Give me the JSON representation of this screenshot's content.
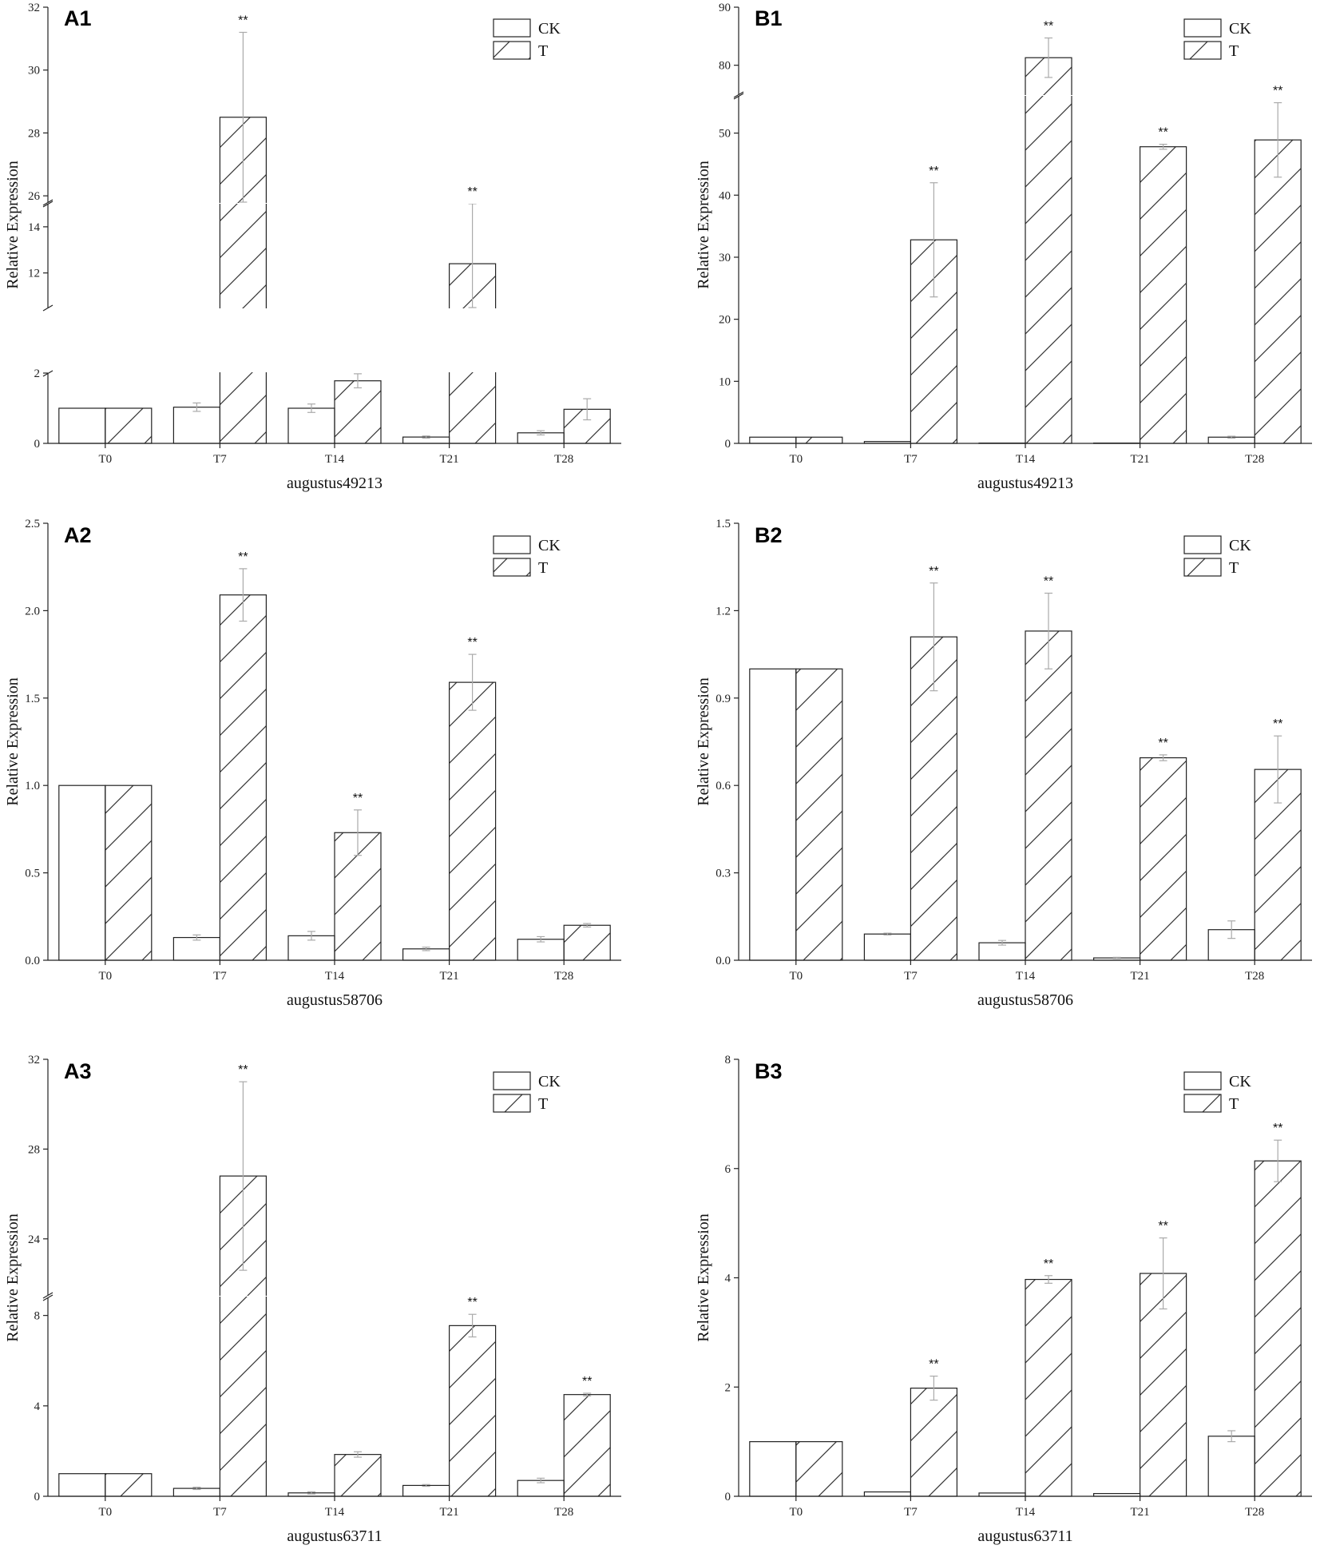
{
  "chart_data": [
    {
      "id": "A1",
      "panel_label": "A1",
      "type": "bar",
      "categories": [
        "T0",
        "T7",
        "T14",
        "T21",
        "T28"
      ],
      "xlabel": "augustus49213",
      "ylabel": "Relative Expression",
      "legend": [
        "CK",
        "T"
      ],
      "legend_position": "top-right",
      "axis_break": true,
      "segments": [
        {
          "range": [
            0,
            2
          ],
          "ticks": [
            0,
            2
          ]
        },
        {
          "range": [
            10.5,
            15
          ],
          "ticks": [
            12,
            14
          ]
        },
        {
          "range": [
            25.8,
            32
          ],
          "ticks": [
            26,
            28,
            30,
            32
          ]
        }
      ],
      "series": [
        {
          "name": "CK",
          "pattern": "open",
          "values": [
            1.0,
            1.03,
            1.0,
            0.18,
            0.3
          ],
          "errors": [
            0,
            0.12,
            0.12,
            0.03,
            0.06
          ]
        },
        {
          "name": "T",
          "pattern": "hatched",
          "values": [
            1.0,
            28.5,
            1.78,
            12.4,
            0.97
          ],
          "errors": [
            0,
            2.7,
            0.2,
            2.6,
            0.3
          ]
        }
      ],
      "significance": [
        "",
        "**",
        "",
        "**",
        ""
      ]
    },
    {
      "id": "B1",
      "panel_label": "B1",
      "type": "bar",
      "categories": [
        "T0",
        "T7",
        "T14",
        "T21",
        "T28"
      ],
      "xlabel": "augustus49213",
      "ylabel": "Relative Expression",
      "legend": [
        "CK",
        "T"
      ],
      "legend_position": "top-right",
      "axis_break": true,
      "segments": [
        {
          "range": [
            0,
            56
          ],
          "ticks": [
            0,
            10,
            20,
            30,
            40,
            50
          ]
        },
        {
          "range": [
            75,
            90
          ],
          "ticks": [
            80,
            90
          ]
        }
      ],
      "series": [
        {
          "name": "CK",
          "pattern": "open",
          "values": [
            1.0,
            0.3,
            0.05,
            0.05,
            1.0
          ],
          "errors": [
            0,
            0,
            0,
            0,
            0.15
          ]
        },
        {
          "name": "T",
          "pattern": "hatched",
          "values": [
            1.0,
            32.8,
            81.3,
            47.8,
            48.9
          ],
          "errors": [
            0,
            9.2,
            3.4,
            0.4,
            6.0
          ]
        }
      ],
      "significance": [
        "",
        "**",
        "**",
        "**",
        "**"
      ]
    },
    {
      "id": "A2",
      "panel_label": "A2",
      "type": "bar",
      "categories": [
        "T0",
        "T7",
        "T14",
        "T21",
        "T28"
      ],
      "xlabel": "augustus58706",
      "ylabel": "Relative Expression",
      "legend": [
        "CK",
        "T"
      ],
      "legend_position": "top-right",
      "axis_break": false,
      "segments": [
        {
          "range": [
            0,
            2.5
          ],
          "ticks": [
            "0.0",
            "0.5",
            "1.0",
            "1.5",
            "2.0",
            "2.5"
          ]
        }
      ],
      "series": [
        {
          "name": "CK",
          "pattern": "open",
          "values": [
            1.0,
            0.13,
            0.14,
            0.065,
            0.12
          ],
          "errors": [
            0,
            0.015,
            0.025,
            0.01,
            0.015
          ]
        },
        {
          "name": "T",
          "pattern": "hatched",
          "values": [
            1.0,
            2.09,
            0.73,
            1.59,
            0.2
          ],
          "errors": [
            0,
            0.15,
            0.13,
            0.16,
            0.01
          ]
        }
      ],
      "significance": [
        "",
        "**",
        "**",
        "**",
        ""
      ]
    },
    {
      "id": "B2",
      "panel_label": "B2",
      "type": "bar",
      "categories": [
        "T0",
        "T7",
        "T14",
        "T21",
        "T28"
      ],
      "xlabel": "augustus58706",
      "ylabel": "Relative Expression",
      "legend": [
        "CK",
        "T"
      ],
      "legend_position": "top-right",
      "axis_break": false,
      "segments": [
        {
          "range": [
            0,
            1.5
          ],
          "ticks": [
            "0.0",
            "0.3",
            "0.6",
            "0.9",
            "1.2",
            "1.5"
          ]
        }
      ],
      "series": [
        {
          "name": "CK",
          "pattern": "open",
          "values": [
            1.0,
            0.09,
            0.06,
            0.008,
            0.105
          ],
          "errors": [
            0,
            0.003,
            0.008,
            0.002,
            0.03
          ]
        },
        {
          "name": "T",
          "pattern": "hatched",
          "values": [
            1.0,
            1.11,
            1.13,
            0.695,
            0.655
          ],
          "errors": [
            0,
            0.185,
            0.13,
            0.01,
            0.115
          ]
        }
      ],
      "significance": [
        "",
        "**",
        "**",
        "**",
        "**"
      ]
    },
    {
      "id": "A3",
      "panel_label": "A3",
      "type": "bar",
      "categories": [
        "T0",
        "T7",
        "T14",
        "T21",
        "T28"
      ],
      "xlabel": "augustus63711",
      "ylabel": "Relative Expression",
      "legend": [
        "CK",
        "T"
      ],
      "legend_position": "top-right",
      "axis_break": true,
      "segments": [
        {
          "range": [
            0,
            8.8
          ],
          "ticks": [
            0,
            4,
            8
          ]
        },
        {
          "range": [
            21.5,
            32
          ],
          "ticks": [
            24,
            28,
            32
          ]
        }
      ],
      "series": [
        {
          "name": "CK",
          "pattern": "open",
          "values": [
            1.0,
            0.35,
            0.15,
            0.48,
            0.7
          ],
          "errors": [
            0,
            0.05,
            0.05,
            0.04,
            0.1
          ]
        },
        {
          "name": "T",
          "pattern": "hatched",
          "values": [
            1.0,
            26.8,
            1.85,
            7.55,
            4.5
          ],
          "errors": [
            0,
            4.2,
            0.12,
            0.5,
            0.06
          ]
        }
      ],
      "significance": [
        "",
        "**",
        "",
        "**",
        "**"
      ]
    },
    {
      "id": "B3",
      "panel_label": "B3",
      "type": "bar",
      "categories": [
        "T0",
        "T7",
        "T14",
        "T21",
        "T28"
      ],
      "xlabel": "augustus63711",
      "ylabel": "Relative Expression",
      "legend": [
        "CK",
        "T"
      ],
      "legend_position": "top-right",
      "axis_break": false,
      "segments": [
        {
          "range": [
            0,
            8
          ],
          "ticks": [
            0,
            2,
            4,
            6,
            8
          ]
        }
      ],
      "series": [
        {
          "name": "CK",
          "pattern": "open",
          "values": [
            1.0,
            0.08,
            0.06,
            0.05,
            1.1
          ],
          "errors": [
            0,
            0,
            0,
            0,
            0.1
          ]
        },
        {
          "name": "T",
          "pattern": "hatched",
          "values": [
            1.0,
            1.98,
            3.97,
            4.08,
            6.14
          ],
          "errors": [
            0,
            0.22,
            0.07,
            0.65,
            0.38
          ]
        }
      ],
      "significance": [
        "",
        "**",
        "**",
        "**",
        "**"
      ]
    }
  ]
}
